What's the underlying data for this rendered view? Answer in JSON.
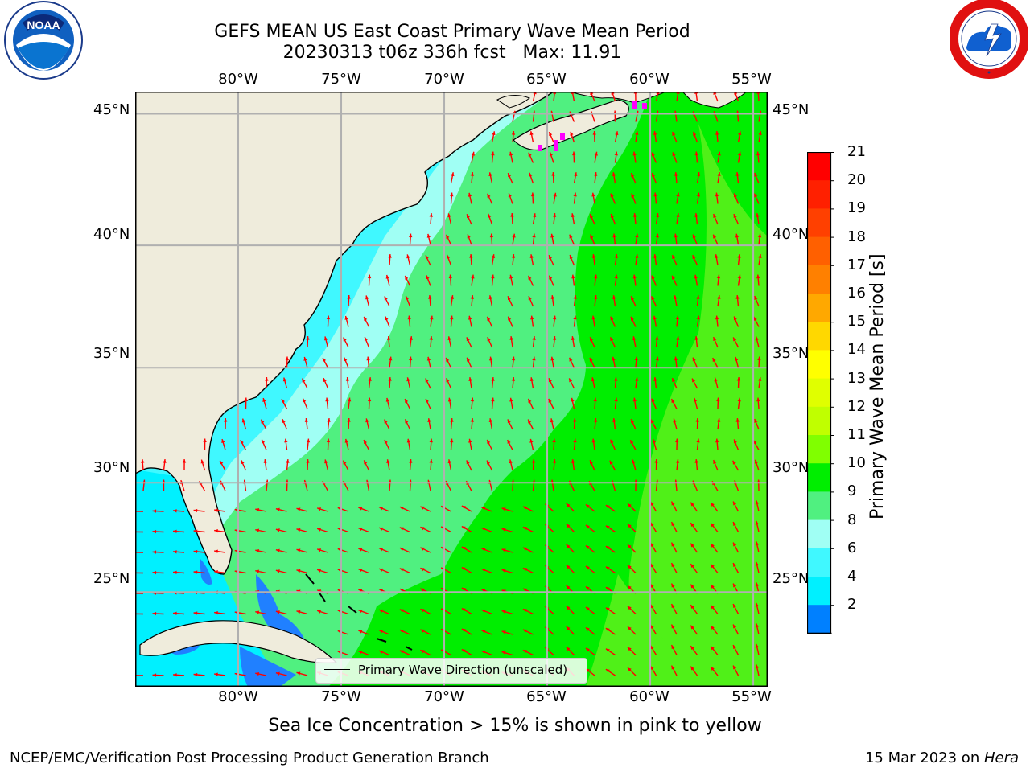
{
  "title": {
    "line1": "GEFS MEAN US East Coast Primary Wave Mean Period",
    "line2": "20230313 t06z 336h fcst   Max: 11.91"
  },
  "logos": {
    "left": {
      "name": "NOAA",
      "ring_text": "NATIONAL OCEANIC AND ATMOSPHERIC ADMINISTRATION · U.S. DEPARTMENT OF COMMERCE"
    },
    "right": {
      "name": "NATIONAL WEATHER SERVICE"
    }
  },
  "map": {
    "lon_ticks": [
      "80°W",
      "75°W",
      "70°W",
      "65°W",
      "60°W",
      "55°W"
    ],
    "lat_ticks_left": [
      "45°N",
      "40°N",
      "35°N",
      "30°N",
      "25°N"
    ],
    "lat_ticks_right": [
      "45°N",
      "40°N",
      "35°N",
      "30°N",
      "25°N"
    ],
    "lon_values": [
      -80,
      -75,
      -70,
      -65,
      -60,
      -55
    ],
    "lat_values": [
      45,
      40,
      35,
      30,
      25
    ],
    "extent": {
      "lon_min": -85,
      "lon_max": -54.3,
      "lat_min": 20.5,
      "lat_max": 45.8
    },
    "land_color": "#efecdc",
    "arrow_color": "#ff0000"
  },
  "legend": {
    "label": "Primary Wave Direction (unscaled)"
  },
  "colorbar": {
    "title": "Primary Wave Mean Period [s]",
    "ticks": [
      "21",
      "20",
      "19",
      "18",
      "17",
      "16",
      "15",
      "14",
      "13",
      "12",
      "11",
      "10",
      "9",
      "8",
      "6",
      "4",
      "2"
    ],
    "colors": [
      "#ff0000",
      "#ff2000",
      "#ff4000",
      "#ff6000",
      "#ff8000",
      "#ffa800",
      "#ffd800",
      "#ffff00",
      "#e0ff00",
      "#c0ff00",
      "#80ff00",
      "#00ee00",
      "#50f080",
      "#a0fff4",
      "#40f8ff",
      "#00f0ff",
      "#0080ff"
    ],
    "extend_color": "#0000ff"
  },
  "subtitle": "Sea Ice Concentration > 15% is shown in pink to yellow",
  "footer": {
    "credit": "NCEP/EMC/Verification Post Processing Product Generation Branch",
    "date": "15 Mar 2023 on ",
    "host": "Hera"
  }
}
